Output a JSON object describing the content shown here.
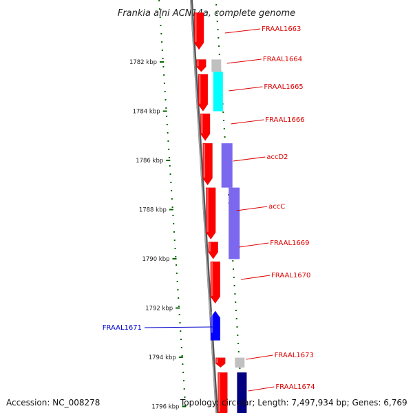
{
  "title": "Frankia alni ACN14a, complete genome",
  "footer": {
    "accession": "Accession: NC_008278",
    "topology": "Topology: circular; Length: 7,497,934 bp; Genes: 6,769"
  },
  "colors": {
    "red": "#ff0000",
    "gray": "#c0c0c0",
    "cyan": "#00ffff",
    "purple": "#7b68ee",
    "blue": "#0000ff",
    "navy": "#000080",
    "ruler": "#006400",
    "label_red": "#dd0000",
    "label_blue": "#0000cc",
    "backbone": "#888888"
  },
  "kbp_ticks": [
    "1782 kbp",
    "1784 kbp",
    "1786 kbp",
    "1788 kbp",
    "1790 kbp",
    "1792 kbp",
    "1794 kbp",
    "1796 kbp"
  ],
  "genes": [
    {
      "label": "FRAAL1663",
      "strand": "forward",
      "start": 1780.0,
      "end": 1781.5,
      "color": "red"
    },
    {
      "label": "FRAAL1664",
      "strand": "forward",
      "start": 1781.9,
      "end": 1782.4,
      "color": "red"
    },
    {
      "label": "FRAAL1665",
      "strand": "forward",
      "start": 1782.5,
      "end": 1784.0,
      "color": "red"
    },
    {
      "label": "FRAAL1666",
      "strand": "forward",
      "start": 1784.1,
      "end": 1785.2,
      "color": "red"
    },
    {
      "label": "accD2",
      "strand": "forward",
      "start": 1785.3,
      "end": 1787.0,
      "color": "red"
    },
    {
      "label": "accC",
      "strand": "forward",
      "start": 1787.1,
      "end": 1789.2,
      "color": "red"
    },
    {
      "label": "FRAAL1669",
      "strand": "forward",
      "start": 1789.3,
      "end": 1790.0,
      "color": "red"
    },
    {
      "label": "FRAAL1670",
      "strand": "forward",
      "start": 1790.1,
      "end": 1791.8,
      "color": "red"
    },
    {
      "label": "FRAAL1671",
      "strand": "reverse",
      "start": 1792.1,
      "end": 1793.3,
      "color": "blue"
    },
    {
      "label": "FRAAL1673",
      "strand": "forward",
      "start": 1794.0,
      "end": 1794.4,
      "color": "red"
    },
    {
      "label": "FRAAL1674",
      "strand": "forward",
      "start": 1794.6,
      "end": 1796.5,
      "color": "red"
    }
  ]
}
